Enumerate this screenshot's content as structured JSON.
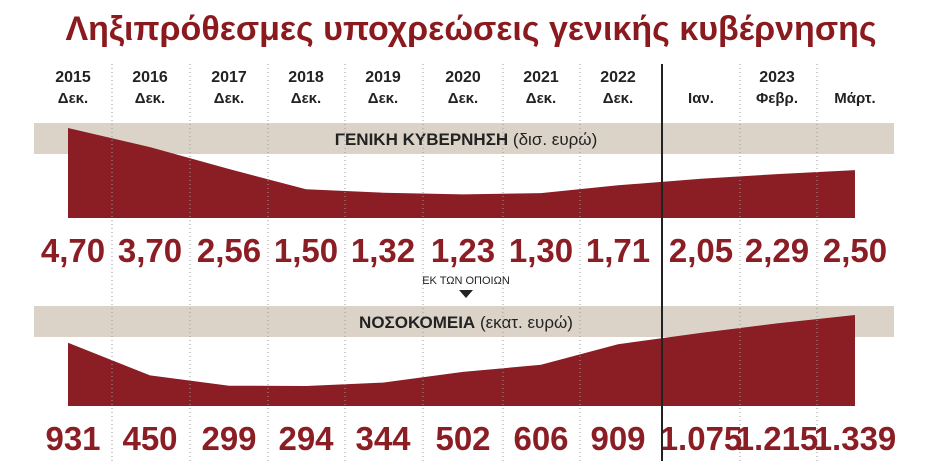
{
  "title": "Ληξιπρόθεσμες υποχρεώσεις γενικής κυβέρνησης",
  "colors": {
    "title": "#8b1a1f",
    "area": "#8b1e24",
    "value": "#8b1e24",
    "band": "#dcd3c8",
    "text": "#222222",
    "divider": "#222222"
  },
  "header": {
    "columns": [
      {
        "year": "2015",
        "month": "Δεκ."
      },
      {
        "year": "2016",
        "month": "Δεκ."
      },
      {
        "year": "2017",
        "month": "Δεκ."
      },
      {
        "year": "2018",
        "month": "Δεκ."
      },
      {
        "year": "2019",
        "month": "Δεκ."
      },
      {
        "year": "2020",
        "month": "Δεκ."
      },
      {
        "year": "2021",
        "month": "Δεκ."
      },
      {
        "year": "2022",
        "month": "Δεκ."
      },
      {
        "year": "",
        "month": "Ιαν."
      },
      {
        "year": "2023",
        "month": "Φεβρ."
      },
      {
        "year": "",
        "month": "Μάρτ."
      }
    ]
  },
  "connector_label": "ΕΚ ΤΩΝ ΟΠΟΙΩΝ",
  "chart_data": [
    {
      "type": "area",
      "band_label_bold": "ΓΕΝΙΚΗ ΚΥΒΕΡΝΗΣΗ",
      "band_label_unit": "(δισ. ευρώ)",
      "categories": [
        "2015 Δεκ.",
        "2016 Δεκ.",
        "2017 Δεκ.",
        "2018 Δεκ.",
        "2019 Δεκ.",
        "2020 Δεκ.",
        "2021 Δεκ.",
        "2022 Δεκ.",
        "2023 Ιαν.",
        "2023 Φεβρ.",
        "2023 Μάρτ."
      ],
      "values": [
        4.7,
        3.7,
        2.56,
        1.5,
        1.32,
        1.23,
        1.3,
        1.71,
        2.05,
        2.29,
        2.5
      ],
      "value_labels": [
        "4,70",
        "3,70",
        "2,56",
        "1,50",
        "1,32",
        "1,23",
        "1,30",
        "1,71",
        "2,05",
        "2,29",
        "2,50"
      ]
    },
    {
      "type": "area",
      "band_label_bold": "ΝΟΣΟΚΟΜΕΙΑ",
      "band_label_unit": "(εκατ. ευρώ)",
      "categories": [
        "2015 Δεκ.",
        "2016 Δεκ.",
        "2017 Δεκ.",
        "2018 Δεκ.",
        "2019 Δεκ.",
        "2020 Δεκ.",
        "2021 Δεκ.",
        "2022 Δεκ.",
        "2023 Ιαν.",
        "2023 Φεβρ.",
        "2023 Μάρτ."
      ],
      "values": [
        931,
        450,
        299,
        294,
        344,
        502,
        606,
        909,
        1075,
        1215,
        1339
      ],
      "value_labels": [
        "931",
        "450",
        "299",
        "294",
        "344",
        "502",
        "606",
        "909",
        "1.075",
        "1.215",
        "1.339"
      ]
    }
  ]
}
